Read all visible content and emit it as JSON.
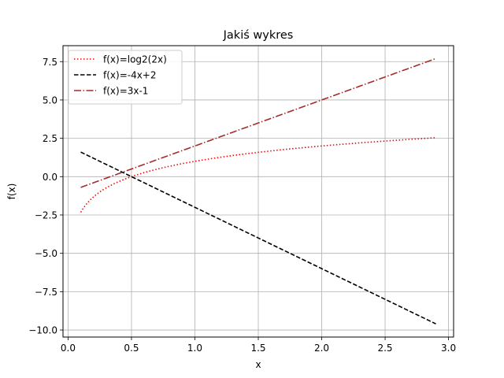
{
  "chart_data": {
    "type": "line",
    "title": "Jakiś wykres",
    "xlabel": "x",
    "ylabel": "f(x)",
    "xlim": [
      -0.04,
      3.04
    ],
    "ylim": [
      -10.46,
      8.54
    ],
    "xticks": [
      0.0,
      0.5,
      1.0,
      1.5,
      2.0,
      2.5,
      3.0
    ],
    "xtick_labels": [
      "0.0",
      "0.5",
      "1.0",
      "1.5",
      "2.0",
      "2.5",
      "3.0"
    ],
    "yticks": [
      -10.0,
      -7.5,
      -5.0,
      -2.5,
      0.0,
      2.5,
      5.0,
      7.5
    ],
    "ytick_labels": [
      "−10.0",
      "−7.5",
      "−5.0",
      "−2.5",
      "0.0",
      "2.5",
      "5.0",
      "7.5"
    ],
    "grid": true,
    "legend_position": "top-left",
    "x_range": [
      0.1,
      2.9
    ],
    "series": [
      {
        "name": "f(x)=log2(2x)",
        "formula": "log2(2x)",
        "color": "#ff0000",
        "style": "dotted"
      },
      {
        "name": "f(x)=-4x+2",
        "formula": "-4x+2",
        "color": "#000000",
        "style": "dashed"
      },
      {
        "name": "f(x)=3x-1",
        "formula": "3x-1",
        "color": "#a52a2a",
        "style": "dashdot"
      }
    ]
  }
}
